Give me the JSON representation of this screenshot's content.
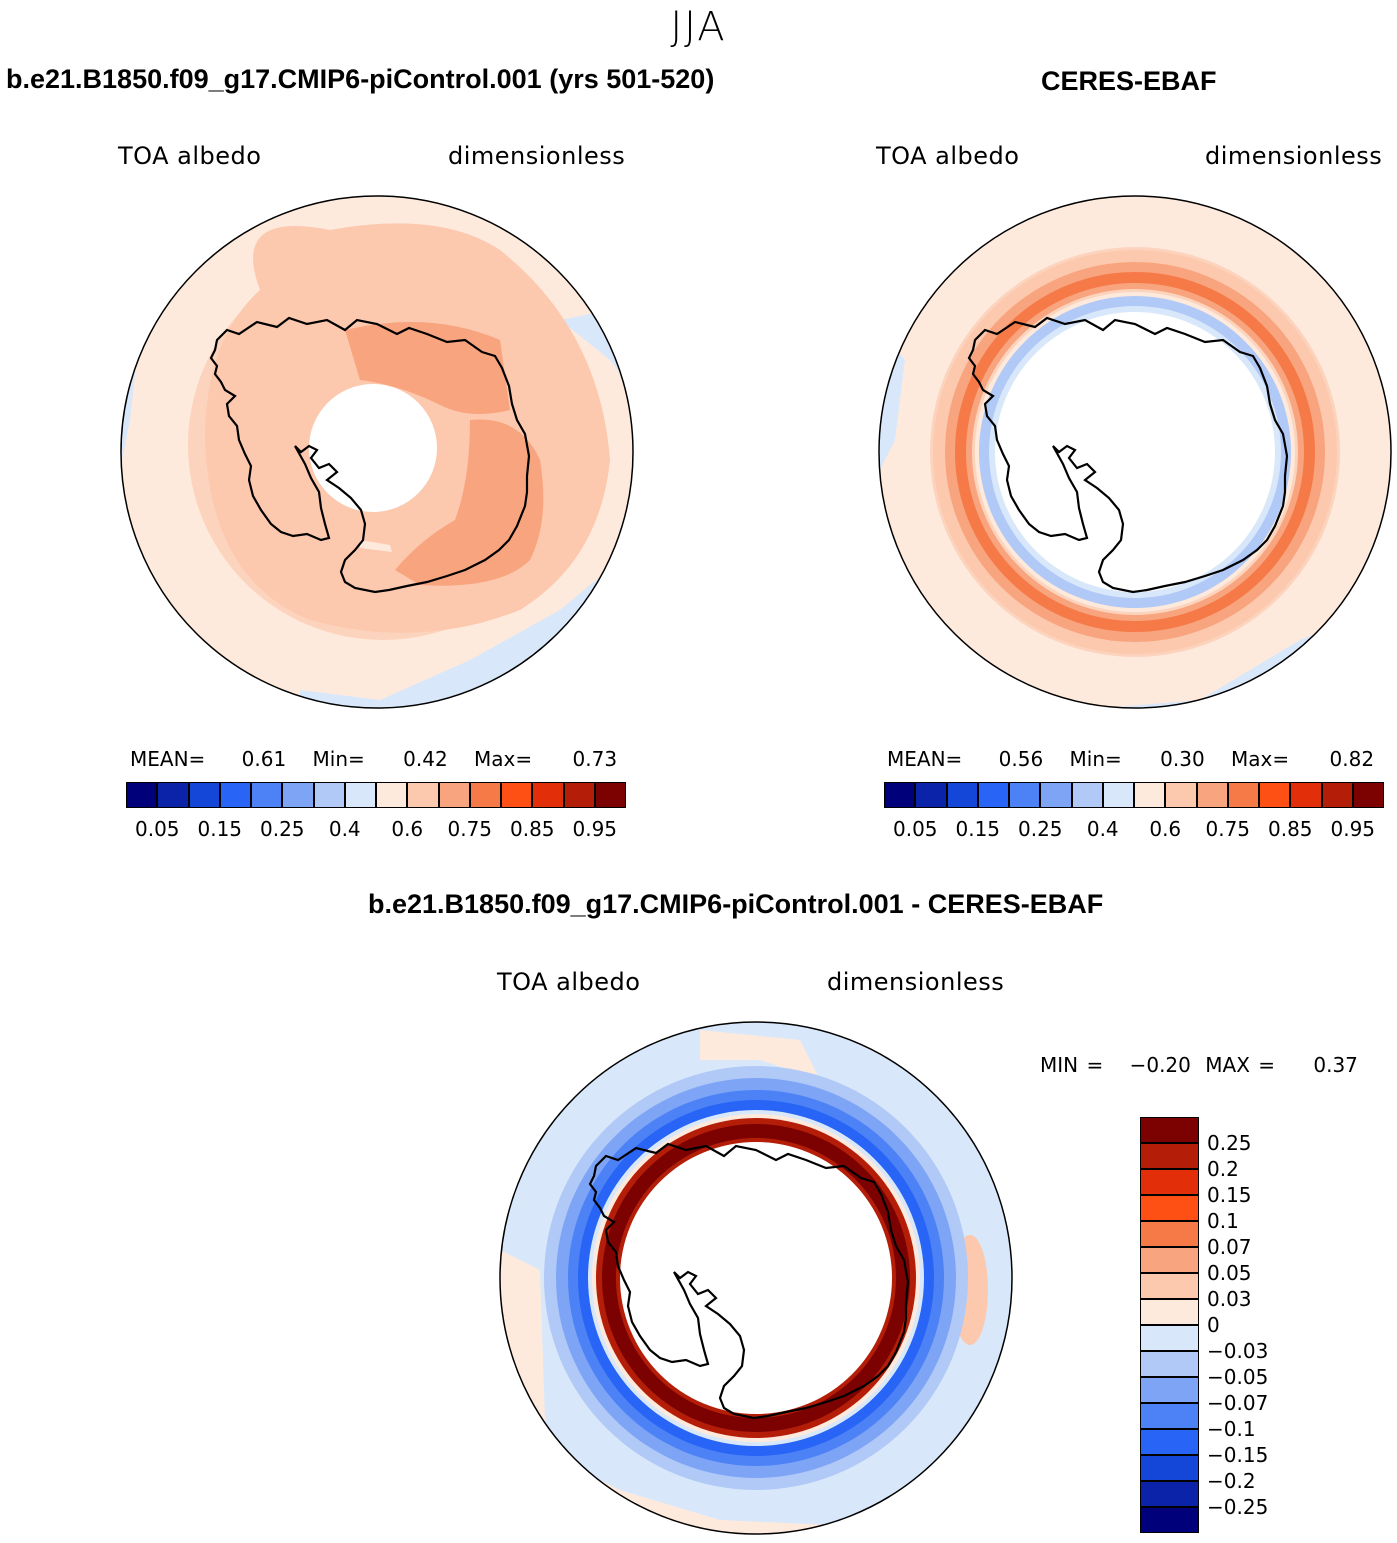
{
  "figure": {
    "title": "JJA"
  },
  "panels": [
    {
      "title": "b.e21.B1850.f09_g17.CMIP6-piControl.001 (yrs 501-520)",
      "variable": "TOA albedo",
      "units": "dimensionless",
      "stats": {
        "mean_label": "MEAN=",
        "mean": "0.61",
        "min_label": "Min=",
        "min": "0.42",
        "max_label": "Max=",
        "max": "0.73"
      }
    },
    {
      "title": "CERES-EBAF",
      "variable": "TOA albedo",
      "units": "dimensionless",
      "stats": {
        "mean_label": "MEAN=",
        "mean": "0.56",
        "min_label": "Min=",
        "min": "0.30",
        "max_label": "Max=",
        "max": "0.82"
      }
    },
    {
      "title": "b.e21.B1850.f09_g17.CMIP6-piControl.001 - CERES-EBAF",
      "variable": "TOA albedo",
      "units": "dimensionless",
      "stats": {
        "min_label": "MIN =",
        "min": "−0.20",
        "max_label": "MAX =",
        "max": "0.37"
      }
    }
  ],
  "colorbars": {
    "absolute": {
      "colors": [
        "#00007a",
        "#0a23a8",
        "#1446d8",
        "#2864f5",
        "#4c82f5",
        "#7ea5f5",
        "#b0c9f7",
        "#d8e8fa",
        "#feeadc",
        "#fcc8ae",
        "#f8a47e",
        "#f67a48",
        "#fe5014",
        "#e32e0a",
        "#b41e08",
        "#7c0202"
      ],
      "tick_labels": [
        "0.05",
        "0.15",
        "0.25",
        "0.4",
        "0.6",
        "0.75",
        "0.85",
        "0.95"
      ]
    },
    "difference": {
      "colors": [
        "#7c0202",
        "#b41e08",
        "#e32e0a",
        "#fe5014",
        "#f67a48",
        "#f8a47e",
        "#fcc8ae",
        "#feeadc",
        "#d8e8fa",
        "#b0c9f7",
        "#7ea5f5",
        "#4c82f5",
        "#2864f5",
        "#1446d8",
        "#0a23a8",
        "#00007a"
      ],
      "tick_labels": [
        "0.25",
        "0.2",
        "0.15",
        "0.1",
        "0.07",
        "0.05",
        "0.03",
        "0",
        "−0.03",
        "−0.05",
        "−0.07",
        "−0.1",
        "−0.15",
        "−0.2",
        "−0.25"
      ]
    }
  }
}
